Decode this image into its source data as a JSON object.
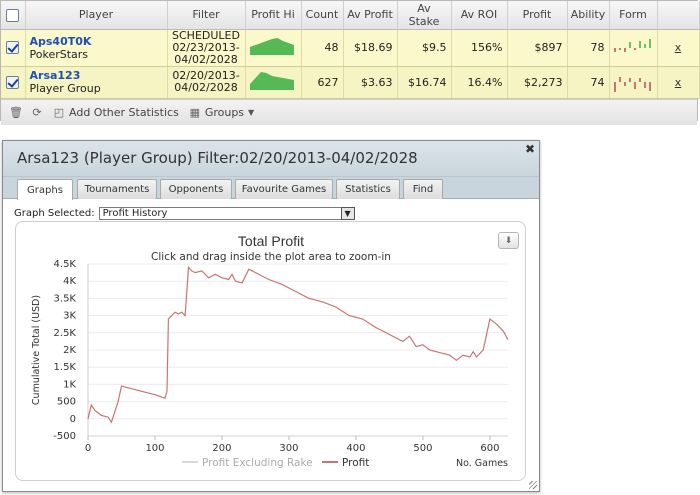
{
  "table": {
    "columns": [
      "Player",
      "Filter",
      "Profit Hi",
      "Count",
      "Av Profit",
      "Av Stake",
      "Av ROI",
      "Profit",
      "Ability",
      "Form"
    ],
    "rows": [
      {
        "player": "Aps40T0K",
        "sub": "PokerStars",
        "filter1": "SCHEDULED",
        "filter2": "02/23/2013-",
        "filter3": "04/02/2028",
        "count": "48",
        "av_profit": "$18.69",
        "av_stake": "$9.5",
        "av_roi": "156%",
        "profit": "$897",
        "ability": "78",
        "close": "x"
      },
      {
        "player": "Arsa123",
        "sub": "Player Group",
        "filter1": "02/20/2013-",
        "filter2": "04/02/2028",
        "filter3": "",
        "count": "627",
        "av_profit": "$3.63",
        "av_stake": "$16.74",
        "av_roi": "16.4%",
        "profit": "$2,273",
        "ability": "74",
        "close": "x"
      }
    ]
  },
  "toolbar": {
    "add_stats": "Add Other Statistics",
    "groups": "Groups"
  },
  "dialog": {
    "title": "Arsa123 (Player Group) Filter:02/20/2013-04/02/2028",
    "tabs": [
      "Graphs",
      "Tournaments",
      "Opponents",
      "Favourite Games",
      "Statistics",
      "Find"
    ],
    "graph_selected_label": "Graph Selected:",
    "graph_selected_value": "Profit History"
  },
  "chart_data": {
    "type": "line",
    "title": "Total Profit",
    "subtitle": "Click and drag inside the plot area to zoom-in",
    "ylabel": "Cumulative Total (USD)",
    "xlabel": "No. Games",
    "ylim": [
      -500,
      4500
    ],
    "xlim": [
      0,
      627
    ],
    "yticks": [
      "-500",
      "0",
      "500",
      "1K",
      "1.5K",
      "2K",
      "2.5K",
      "3K",
      "3.5K",
      "4K",
      "4.5K"
    ],
    "xticks": [
      "0",
      "100",
      "200",
      "300",
      "400",
      "500",
      "600"
    ],
    "legend_position": "bottom",
    "series": [
      {
        "name": "Profit Excluding Rake",
        "color": "#d8d8d8",
        "x": [],
        "y": []
      },
      {
        "name": "Profit",
        "color": "#c97474",
        "x": [
          0,
          5,
          10,
          20,
          30,
          35,
          45,
          50,
          60,
          80,
          100,
          115,
          118,
          120,
          125,
          130,
          135,
          140,
          145,
          150,
          155,
          160,
          170,
          180,
          190,
          200,
          210,
          215,
          220,
          230,
          240,
          250,
          270,
          290,
          310,
          330,
          350,
          370,
          390,
          410,
          430,
          450,
          470,
          480,
          490,
          500,
          510,
          530,
          540,
          550,
          560,
          570,
          575,
          580,
          590,
          600,
          610,
          620,
          627
        ],
        "y": [
          0,
          400,
          250,
          100,
          50,
          -100,
          500,
          950,
          900,
          800,
          700,
          600,
          800,
          2900,
          3000,
          3100,
          3050,
          3100,
          3000,
          4400,
          4300,
          4250,
          4300,
          4100,
          4200,
          4100,
          4050,
          4200,
          4000,
          3950,
          4350,
          4250,
          4050,
          3900,
          3700,
          3500,
          3400,
          3250,
          3000,
          2900,
          2650,
          2450,
          2250,
          2400,
          2100,
          2150,
          2000,
          1900,
          1850,
          1700,
          1850,
          1800,
          1950,
          1800,
          2000,
          2900,
          2750,
          2550,
          2300
        ]
      }
    ]
  },
  "form_bars": {
    "row1": [
      {
        "v": -2,
        "c": "#c97474"
      },
      {
        "v": -1,
        "c": "#c97474"
      },
      {
        "v": -2,
        "c": "#c97474"
      },
      {
        "v": 3,
        "c": "#6bc36b"
      },
      {
        "v": -1,
        "c": "#c97474"
      },
      {
        "v": 4,
        "c": "#6bc36b"
      },
      {
        "v": 2,
        "c": "#6bc36b"
      },
      {
        "v": 5,
        "c": "#6bc36b"
      }
    ],
    "row2": [
      {
        "v": -6,
        "c": "#c97474"
      },
      {
        "v": 3,
        "c": "#c97474"
      },
      {
        "v": -2,
        "c": "#c97474"
      },
      {
        "v": 2,
        "c": "#c97474"
      },
      {
        "v": -4,
        "c": "#c97474"
      },
      {
        "v": 2,
        "c": "#c97474"
      },
      {
        "v": -3,
        "c": "#c97474"
      },
      {
        "v": -5,
        "c": "#c97474"
      }
    ]
  },
  "profit_hi_fill": {
    "row1": [
      0.4,
      0.5,
      0.6,
      0.7,
      0.8,
      0.85,
      0.7,
      0.6,
      0.5
    ],
    "row2": [
      0.3,
      0.6,
      0.9,
      0.85,
      0.7,
      0.65,
      0.6,
      0.55,
      0.5
    ]
  }
}
